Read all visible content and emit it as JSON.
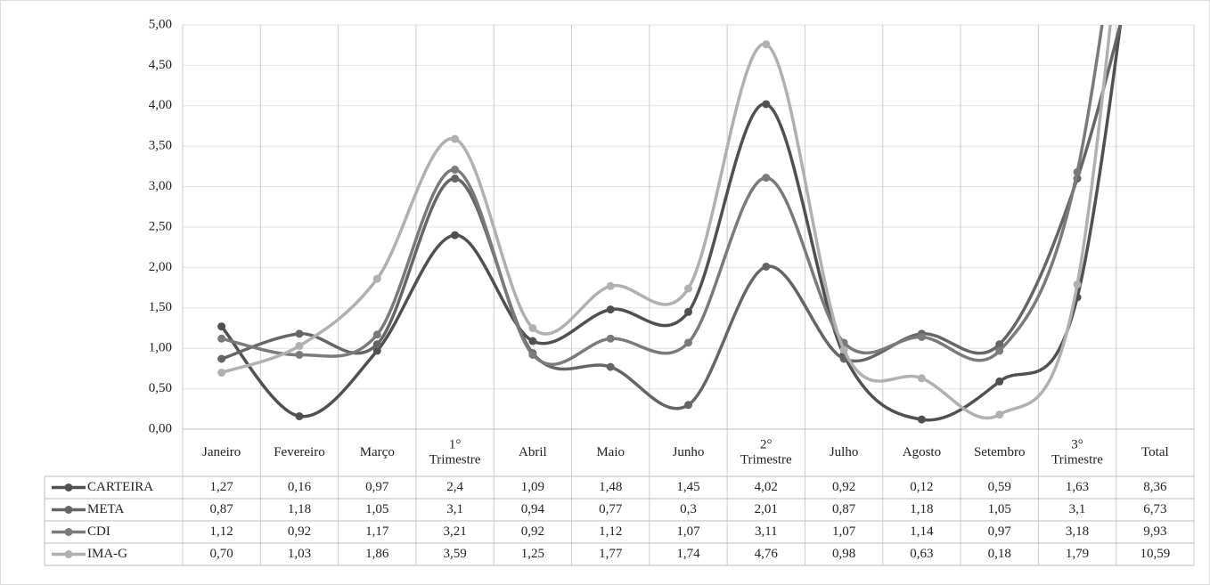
{
  "chart_data": {
    "type": "line",
    "categories": [
      "Janeiro",
      "Fevereiro",
      "Março",
      "1° Trimestre",
      "Abril",
      "Maio",
      "Junho",
      "2° Trimestre",
      "Julho",
      "Agosto",
      "Setembro",
      "3° Trimestre",
      "Total"
    ],
    "series": [
      {
        "name": "CARTEIRA",
        "color": "#505050",
        "values": [
          1.27,
          0.16,
          0.97,
          2.4,
          1.09,
          1.48,
          1.45,
          4.02,
          0.92,
          0.12,
          0.59,
          1.63,
          8.36
        ],
        "value_labels": [
          "1,27",
          "0,16",
          "0,97",
          "2,4",
          "1,09",
          "1,48",
          "1,45",
          "4,02",
          "0,92",
          "0,12",
          "0,59",
          "1,63",
          "8,36"
        ]
      },
      {
        "name": "META",
        "color": "#656565",
        "values": [
          0.87,
          1.18,
          1.05,
          3.1,
          0.94,
          0.77,
          0.3,
          2.01,
          0.87,
          1.18,
          1.05,
          3.1,
          6.73
        ],
        "value_labels": [
          "0,87",
          "1,18",
          "1,05",
          "3,1",
          "0,94",
          "0,77",
          "0,3",
          "2,01",
          "0,87",
          "1,18",
          "1,05",
          "3,1",
          "6,73"
        ]
      },
      {
        "name": "CDI",
        "color": "#7a7a7a",
        "values": [
          1.12,
          0.92,
          1.17,
          3.21,
          0.92,
          1.12,
          1.07,
          3.11,
          1.07,
          1.14,
          0.97,
          3.18,
          9.93
        ],
        "value_labels": [
          "1,12",
          "0,92",
          "1,17",
          "3,21",
          "0,92",
          "1,12",
          "1,07",
          "3,11",
          "1,07",
          "1,14",
          "0,97",
          "3,18",
          "9,93"
        ]
      },
      {
        "name": "IMA-G",
        "color": "#b0b0b0",
        "values": [
          0.7,
          1.03,
          1.86,
          3.59,
          1.25,
          1.77,
          1.74,
          4.76,
          0.98,
          0.63,
          0.18,
          1.79,
          10.59
        ],
        "value_labels": [
          "0,70",
          "1,03",
          "1,86",
          "3,59",
          "1,25",
          "1,77",
          "1,74",
          "4,76",
          "0,98",
          "0,63",
          "0,18",
          "1,79",
          "10,59"
        ]
      }
    ],
    "ylim": [
      0,
      5
    ],
    "yticks": [
      {
        "value": 0,
        "label": "0,00"
      },
      {
        "value": 0.5,
        "label": "0,50"
      },
      {
        "value": 1,
        "label": "1,00"
      },
      {
        "value": 1.5,
        "label": "1,50"
      },
      {
        "value": 2,
        "label": "2,00"
      },
      {
        "value": 2.5,
        "label": "2,50"
      },
      {
        "value": 3,
        "label": "3,00"
      },
      {
        "value": 3.5,
        "label": "3,50"
      },
      {
        "value": 4,
        "label": "4,00"
      },
      {
        "value": 4.5,
        "label": "4,50"
      },
      {
        "value": 5,
        "label": "5,00"
      }
    ],
    "grid": true
  }
}
